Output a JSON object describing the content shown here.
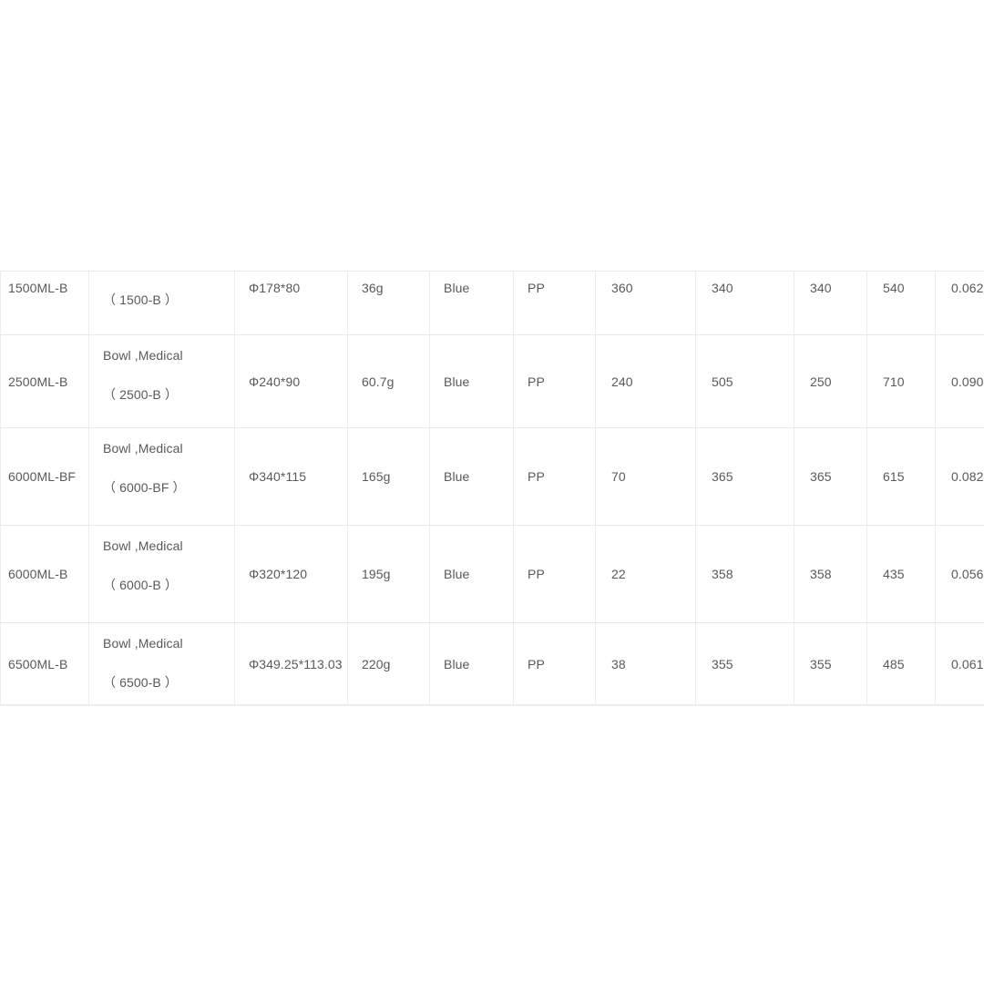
{
  "page": {
    "background": "#ffffff"
  },
  "table": {
    "colors": {
      "text": "#595959",
      "column_border": "#ececec",
      "row_border": "#e9e9e9"
    },
    "rows": [
      {
        "model": "1500ML-B",
        "desc1": "",
        "desc2": "（ 1500-B ）",
        "size": "Φ178*80",
        "weight": "36g",
        "color": "Blue",
        "material": "PP",
        "v1": "360",
        "v2": "340",
        "v3": "340",
        "v4": "540",
        "v5": "0.062"
      },
      {
        "model": "2500ML-B",
        "desc1": "Bowl ,Medical",
        "desc2": "（ 2500-B ）",
        "size": "Φ240*90",
        "weight": "60.7g",
        "color": "Blue",
        "material": "PP",
        "v1": "240",
        "v2": "505",
        "v3": "250",
        "v4": "710",
        "v5": "0.090"
      },
      {
        "model": "6000ML-BF",
        "desc1": "Bowl ,Medical",
        "desc2": "（ 6000-BF ）",
        "size": "Φ340*115",
        "weight": "165g",
        "color": "Blue",
        "material": "PP",
        "v1": "70",
        "v2": "365",
        "v3": "365",
        "v4": "615",
        "v5": "0.082"
      },
      {
        "model": "6000ML-B",
        "desc1": "Bowl ,Medical",
        "desc2": "（ 6000-B ）",
        "size": "Φ320*120",
        "weight": "195g",
        "color": "Blue",
        "material": "PP",
        "v1": "22",
        "v2": "358",
        "v3": "358",
        "v4": "435",
        "v5": "0.056"
      },
      {
        "model": "6500ML-B",
        "desc1": "Bowl ,Medical",
        "desc2": "（ 6500-B ）",
        "size": "Φ349.25*113.03",
        "weight": "220g",
        "color": "Blue",
        "material": "PP",
        "v1": "38",
        "v2": "355",
        "v3": "355",
        "v4": "485",
        "v5": "0.061"
      }
    ]
  }
}
